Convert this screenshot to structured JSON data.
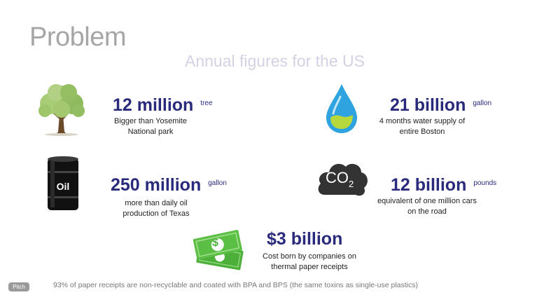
{
  "slide": {
    "title": "Problem",
    "subtitle": "Annual figures for the US",
    "stats": [
      {
        "value": "12 million",
        "unit": "tree",
        "desc_line1": "Bigger than Yosemite",
        "desc_line2": "National park",
        "icon": "tree-icon"
      },
      {
        "value": "21 billion",
        "unit": "gallon",
        "desc_line1": "4 months water supply of",
        "desc_line2": "entire Boston",
        "icon": "water-drop-icon"
      },
      {
        "value": "250 million",
        "unit": "gallon",
        "desc_line1": "more than daily oil",
        "desc_line2": "production of Texas",
        "icon": "oil-barrel-icon"
      },
      {
        "value": "12 billion",
        "unit": "pounds",
        "desc_line1": "equivalent of one million cars",
        "desc_line2": "on the road",
        "icon": "co2-cloud-icon"
      },
      {
        "value": "$3 billion",
        "unit": "",
        "desc_line1": "Cost born by companies on",
        "desc_line2": "thermal paper receipts",
        "icon": "money-icon"
      }
    ],
    "oil_label": "Oil",
    "co2_label": "CO",
    "co2_sub": "2",
    "dollar_sign": "$",
    "footer": "93% of paper receipts are non-recyclable and coated with BPA and BPS (the same toxins as single-use plastics)",
    "badge": "Pitch"
  },
  "colors": {
    "accent": "#2a2a7c",
    "title": "#a6a6a6",
    "subtitle": "#d2d2e4"
  }
}
